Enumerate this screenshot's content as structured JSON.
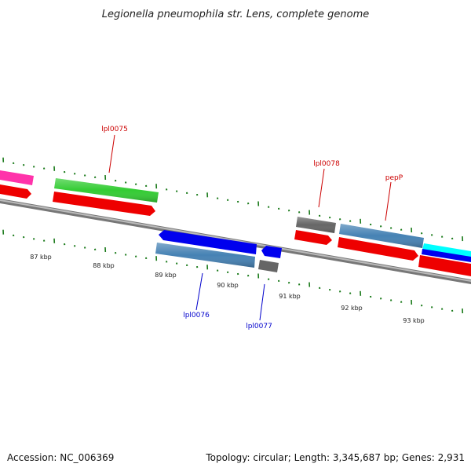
{
  "title": "Legionella pneumophila str. Lens, complete genome",
  "footer": {
    "accession": "Accession: NC_006369",
    "summary": "Topology: circular; Length: 3,345,687 bp; Genes: 2,931"
  },
  "scale_labels": [
    "87 kbp",
    "88 kbp",
    "89 kbp",
    "90 kbp",
    "91 kbp",
    "92 kbp",
    "93 kbp"
  ],
  "gene_labels": [
    {
      "text": "lpl0075",
      "strand": "forward",
      "color": "#cc0000"
    },
    {
      "text": "lpl0078",
      "strand": "forward",
      "color": "#cc0000"
    },
    {
      "text": "pepP",
      "strand": "forward",
      "color": "#cc0000"
    },
    {
      "text": "lpl0076",
      "strand": "reverse",
      "color": "#0000cc"
    },
    {
      "text": "lpl0077",
      "strand": "reverse",
      "color": "#0000cc"
    }
  ],
  "colors": {
    "backbone": "#808080",
    "tick": "#1a7a1a",
    "cds": "#ee0000",
    "forward_label": "#cc0000",
    "reverse_label": "#0000cc",
    "magenta_feature": "#ff33aa",
    "green_feature": "#33cc33",
    "grey_feature": "#666666",
    "steelblue_feature": "#4682b4",
    "blue_feature": "#0000ee",
    "cyan_feature": "#00ffff"
  }
}
